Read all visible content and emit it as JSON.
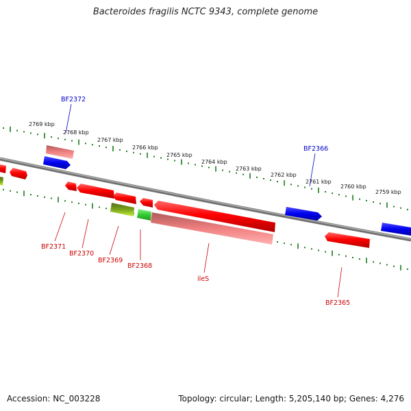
{
  "header": {
    "title": "Bacteroides fragilis NCTC 9343, complete genome"
  },
  "footer": {
    "accession": "Accession: NC_003228",
    "summary": "Topology: circular; Length: 5,205,140 bp; Genes: 4,276"
  },
  "colors": {
    "backbone": "#808080",
    "ticks": "#1a7a1a",
    "red": "#ff0000",
    "pink": "#f08080",
    "blue": "#0000ee",
    "green": "#33cc33",
    "olive": "#7aa51a",
    "label_red": "#cc0000",
    "label_blue": "#0000cc"
  },
  "kbp_labels": [
    "2769 kbp",
    "2768 kbp",
    "2767 kbp",
    "2766 kbp",
    "2765 kbp",
    "2764 kbp",
    "2763 kbp",
    "2762 kbp",
    "2761 kbp",
    "2760 kbp",
    "2759 kbp"
  ],
  "genes": [
    {
      "label": "BF2372",
      "color": "pink"
    },
    {
      "label": "",
      "color": "blue"
    },
    {
      "label": "BF2371",
      "color": "red"
    },
    {
      "label": "",
      "color": "red"
    },
    {
      "label": "",
      "color": "olive"
    },
    {
      "label": "BF2370",
      "color": "red"
    },
    {
      "label": "BF2369",
      "color": "olive"
    },
    {
      "label": "BF2368",
      "color": "green"
    },
    {
      "label": "ileS",
      "color": "pink"
    },
    {
      "label": "BF2366",
      "color": "blue"
    },
    {
      "label": "BF2365",
      "color": "red"
    }
  ],
  "gene_labels": {
    "bf2372": "BF2372",
    "bf2371": "BF2371",
    "bf2370": "BF2370",
    "bf2369": "BF2369",
    "bf2368": "BF2368",
    "iles": "ileS",
    "bf2366": "BF2366",
    "bf2365": "BF2365"
  }
}
